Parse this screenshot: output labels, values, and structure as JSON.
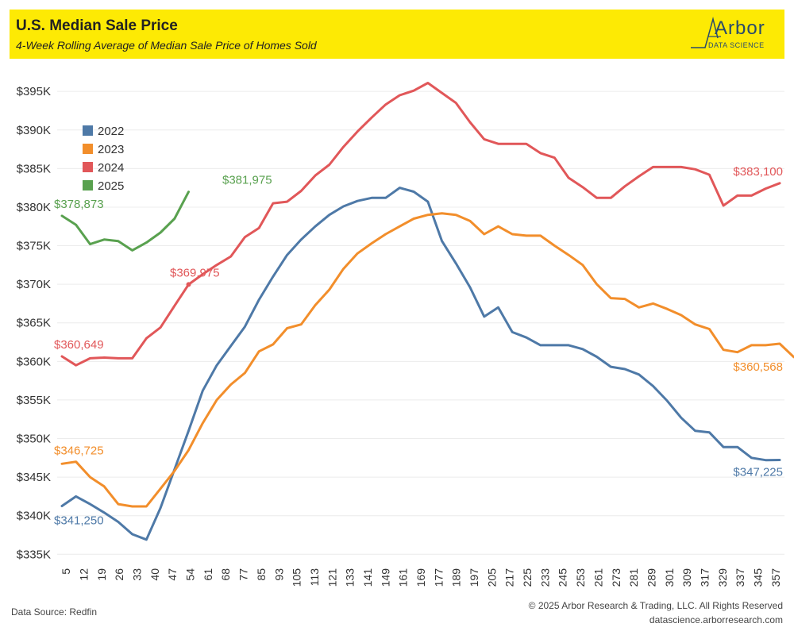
{
  "header": {
    "title": "U.S. Median Sale Price",
    "subtitle": "4-Week Rolling Average of Median Sale Price of Homes Sold",
    "logo_main": "Arbor",
    "logo_sub": "DATA SCIENCE"
  },
  "footer": {
    "source": "Data Source: Redfin",
    "copyright": "© 2025 Arbor Research & Trading, LLC. All Rights Reserved",
    "website": "datascience.arborresearch.com"
  },
  "chart_data": {
    "type": "line",
    "title": "U.S. Median Sale Price",
    "subtitle": "4-Week Rolling Average of Median Sale Price of Homes Sold",
    "ylim": [
      334000,
      398000
    ],
    "ytick_values": [
      335000,
      340000,
      345000,
      350000,
      355000,
      360000,
      365000,
      370000,
      375000,
      380000,
      385000,
      390000,
      395000
    ],
    "ytick_labels": [
      "$335K",
      "$340K",
      "$345K",
      "$350K",
      "$355K",
      "$360K",
      "$365K",
      "$370K",
      "$375K",
      "$380K",
      "$385K",
      "$390K",
      "$395K"
    ],
    "x_labels": [
      "5",
      "12",
      "19",
      "26",
      "33",
      "40",
      "47",
      "54",
      "61",
      "68",
      "77",
      "85",
      "93",
      "105",
      "113",
      "121",
      "133",
      "141",
      "149",
      "161",
      "169",
      "177",
      "189",
      "197",
      "205",
      "217",
      "225",
      "233",
      "245",
      "253",
      "261",
      "273",
      "281",
      "289",
      "301",
      "309",
      "317",
      "329",
      "337",
      "345",
      "357"
    ],
    "legend_position": "top-left",
    "grid": "horizontal",
    "series": [
      {
        "name": "2022",
        "color": "#4e79a7",
        "values": [
          341250,
          342500,
          341500,
          340400,
          339200,
          337600,
          336900,
          341000,
          346000,
          351000,
          356200,
          359500,
          362000,
          364500,
          368000,
          371000,
          373800,
          375800,
          377500,
          379000,
          380100,
          380800,
          381200,
          381200,
          382500,
          382000,
          380700,
          375600,
          372700,
          369600,
          365800,
          367000,
          363800,
          363100,
          362100,
          362100,
          362100,
          361600,
          360600,
          359300,
          359000,
          358300,
          356800,
          354900,
          352700,
          351000,
          350800,
          348900,
          348900,
          347500,
          347200,
          347225
        ],
        "end_label": "$341,250",
        "last_label": "$347,225"
      },
      {
        "name": "2023",
        "color": "#f28e2b",
        "values": [
          346725,
          347000,
          345000,
          343800,
          341500,
          341200,
          341200,
          343500,
          345800,
          348500,
          352000,
          355000,
          357000,
          358500,
          361300,
          362200,
          364300,
          364800,
          367300,
          369300,
          372000,
          374000,
          375300,
          376500,
          377500,
          378500,
          379000,
          379200,
          379000,
          378200,
          376500,
          377500,
          376500,
          376300,
          376300,
          375000,
          373800,
          372500,
          370000,
          368200,
          368100,
          367000,
          367500,
          366800,
          366000,
          364800,
          364200,
          361500,
          361200,
          362100,
          362100,
          362300,
          360568
        ],
        "end_label": "$346,725",
        "last_label": "$360,568"
      },
      {
        "name": "2024",
        "color": "#e15759",
        "values": [
          360649,
          359500,
          360400,
          360500,
          360400,
          360400,
          363000,
          364400,
          367200,
          369975,
          371300,
          372500,
          373600,
          376100,
          377300,
          380500,
          380700,
          382100,
          384100,
          385500,
          387800,
          389800,
          391600,
          393300,
          394500,
          395100,
          396100,
          394800,
          393500,
          391000,
          388800,
          388200,
          388200,
          388200,
          387000,
          386400,
          383800,
          382600,
          381200,
          381200,
          382700,
          384000,
          385200,
          385200,
          385200,
          384900,
          384200,
          380200,
          381500,
          381500,
          382400,
          383100
        ],
        "end_label": "$360,649",
        "mid_label": "$369,975",
        "last_label": "$383,100"
      },
      {
        "name": "2025",
        "color": "#59a14f",
        "values": [
          378873,
          377700,
          375200,
          375800,
          375600,
          374400,
          375400,
          376700,
          378500,
          381975
        ],
        "end_label": "$378,873",
        "last_label": "$381,975"
      }
    ]
  }
}
